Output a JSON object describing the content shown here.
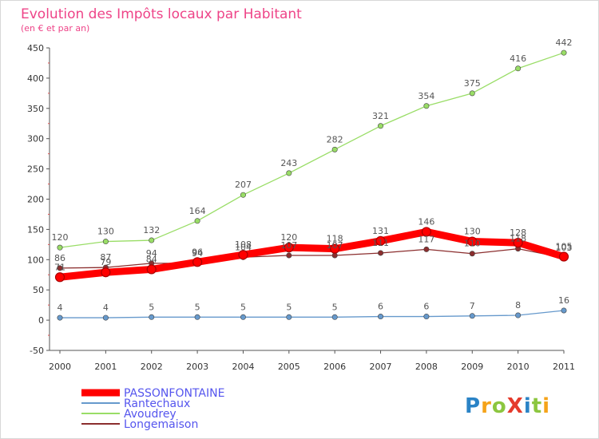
{
  "chart_data": {
    "type": "line",
    "title": "Evolution des Impôts locaux par Habitant",
    "subtitle": "(en € et par an)",
    "xlabel": "",
    "ylabel": "",
    "ylim": [
      -50,
      450
    ],
    "yticks": [
      -50,
      0,
      50,
      100,
      150,
      200,
      250,
      300,
      350,
      400,
      450
    ],
    "x": [
      "2000",
      "2001",
      "2002",
      "2003",
      "2004",
      "2005",
      "2006",
      "2007",
      "2008",
      "2009",
      "2010",
      "2011"
    ],
    "grid": false,
    "legend_position": "bottom-left",
    "series": [
      {
        "name": "PASSONFONTAINE",
        "color": "#ff0000",
        "values": [
          71,
          79,
          84,
          96,
          108,
          120,
          118,
          131,
          146,
          130,
          128,
          105
        ],
        "labels": [
          "71",
          "79",
          "84",
          "96",
          "108",
          "120",
          "118",
          "131",
          "146",
          "130",
          "128",
          "105"
        ]
      },
      {
        "name": "Rantechaux",
        "color": "#6699cc",
        "values": [
          4,
          4,
          5,
          5,
          5,
          5,
          5,
          6,
          6,
          7,
          8,
          16
        ],
        "labels": [
          "4",
          "4",
          "5",
          "5",
          "5",
          "5",
          "5",
          "6",
          "6",
          "7",
          "8",
          "16"
        ]
      },
      {
        "name": "Avoudrey",
        "color": "#99dd66",
        "values": [
          120,
          130,
          132,
          164,
          207,
          243,
          282,
          321,
          354,
          375,
          416,
          442
        ],
        "labels": [
          "120",
          "130",
          "132",
          "164",
          "207",
          "243",
          "282",
          "321",
          "354",
          "375",
          "416",
          "442"
        ]
      },
      {
        "name": "Longemaison",
        "color": "#8b2e2e",
        "values": [
          86,
          87,
          94,
          94,
          104,
          107,
          107,
          111,
          117,
          110,
          118,
          103
        ],
        "labels": [
          "86",
          "87",
          "94",
          "94",
          "104",
          "107",
          "107",
          "111",
          "117",
          "110",
          "118",
          "103"
        ]
      }
    ]
  },
  "logo": {
    "text": "ProXiti"
  }
}
